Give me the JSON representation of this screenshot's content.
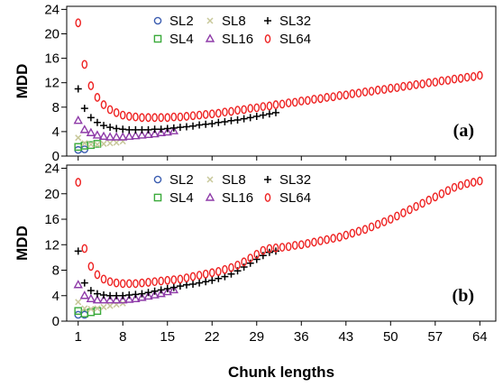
{
  "chart_data": {
    "type": "scatter",
    "xlabel": "Chunk lengths",
    "ylabel": "MDD",
    "x_ticks": [
      1,
      8,
      15,
      22,
      29,
      36,
      43,
      50,
      57,
      64
    ],
    "y_ticks": [
      0,
      4,
      8,
      12,
      16,
      20,
      24
    ],
    "xlim": [
      -0.8,
      66.5
    ],
    "ylim": [
      0,
      24.5
    ],
    "grid": false,
    "legend_position": "top-left",
    "series_style": {
      "SL2": {
        "marker": "circle-open",
        "color": "#3a5cb0"
      },
      "SL4": {
        "marker": "square-open",
        "color": "#3aaa3a"
      },
      "SL8": {
        "marker": "x",
        "color": "#c8c89a"
      },
      "SL16": {
        "marker": "triangle-open",
        "color": "#8e3aa8"
      },
      "SL32": {
        "marker": "plus",
        "color": "#000000"
      },
      "SL64": {
        "marker": "ellipse-open",
        "color": "#ee2222"
      }
    },
    "panels": [
      {
        "panel_label": "(a)",
        "series": [
          {
            "name": "SL2",
            "x": [
              1,
              2
            ],
            "y": [
              1.0,
              1.1
            ]
          },
          {
            "name": "SL4",
            "x": [
              1,
              2,
              3,
              4
            ],
            "y": [
              1.5,
              1.7,
              1.8,
              2.0
            ]
          },
          {
            "name": "SL8",
            "x": [
              1,
              2,
              3,
              4,
              5,
              6,
              7,
              8
            ],
            "y": [
              3.0,
              2.1,
              1.9,
              1.9,
              2.0,
              2.1,
              2.2,
              2.4
            ]
          },
          {
            "name": "SL16",
            "x": [
              1,
              2,
              3,
              4,
              5,
              6,
              7,
              8,
              9,
              10,
              11,
              12,
              13,
              14,
              15,
              16
            ],
            "y": [
              5.8,
              4.3,
              3.8,
              3.4,
              3.2,
              3.1,
              3.1,
              3.1,
              3.2,
              3.3,
              3.4,
              3.5,
              3.6,
              3.8,
              3.9,
              4.1
            ]
          },
          {
            "name": "SL32",
            "x": [
              1,
              2,
              3,
              4,
              5,
              6,
              7,
              8,
              9,
              10,
              11,
              12,
              13,
              14,
              15,
              16,
              17,
              18,
              19,
              20,
              21,
              22,
              23,
              24,
              25,
              26,
              27,
              28,
              29,
              30,
              31,
              32
            ],
            "y": [
              11.0,
              7.8,
              6.3,
              5.5,
              5.0,
              4.7,
              4.5,
              4.4,
              4.3,
              4.3,
              4.3,
              4.3,
              4.4,
              4.4,
              4.5,
              4.6,
              4.7,
              4.8,
              4.9,
              5.1,
              5.2,
              5.3,
              5.5,
              5.6,
              5.8,
              5.9,
              6.1,
              6.3,
              6.5,
              6.7,
              6.9,
              7.1
            ]
          },
          {
            "name": "SL64",
            "x": [
              1,
              2,
              3,
              4,
              5,
              6,
              7,
              8,
              9,
              10,
              11,
              12,
              13,
              14,
              15,
              16,
              17,
              18,
              19,
              20,
              21,
              22,
              23,
              24,
              25,
              26,
              27,
              28,
              29,
              30,
              31,
              32,
              33,
              34,
              35,
              36,
              37,
              38,
              39,
              40,
              41,
              42,
              43,
              44,
              45,
              46,
              47,
              48,
              49,
              50,
              51,
              52,
              53,
              54,
              55,
              56,
              57,
              58,
              59,
              60,
              61,
              62,
              63,
              64
            ],
            "y": [
              21.8,
              15.0,
              11.5,
              9.6,
              8.4,
              7.6,
              7.1,
              6.7,
              6.5,
              6.4,
              6.3,
              6.3,
              6.3,
              6.3,
              6.3,
              6.4,
              6.4,
              6.5,
              6.6,
              6.7,
              6.8,
              6.9,
              7.0,
              7.2,
              7.3,
              7.5,
              7.6,
              7.8,
              7.9,
              8.1,
              8.2,
              8.4,
              8.5,
              8.7,
              8.8,
              9.0,
              9.1,
              9.3,
              9.4,
              9.6,
              9.7,
              9.9,
              10.0,
              10.2,
              10.3,
              10.5,
              10.6,
              10.8,
              10.9,
              11.1,
              11.2,
              11.4,
              11.5,
              11.7,
              11.8,
              12.0,
              12.1,
              12.3,
              12.4,
              12.6,
              12.7,
              12.9,
              13.0,
              13.2
            ]
          }
        ]
      },
      {
        "panel_label": "(b)",
        "series": [
          {
            "name": "SL2",
            "x": [
              1,
              2
            ],
            "y": [
              1.0,
              1.0
            ]
          },
          {
            "name": "SL4",
            "x": [
              1,
              2,
              3,
              4
            ],
            "y": [
              1.6,
              1.2,
              1.4,
              1.6
            ]
          },
          {
            "name": "SL8",
            "x": [
              1,
              2,
              3,
              4,
              5,
              6,
              7,
              8
            ],
            "y": [
              3.0,
              2.0,
              1.9,
              2.0,
              2.2,
              2.4,
              2.6,
              2.8
            ]
          },
          {
            "name": "SL16",
            "x": [
              1,
              2,
              3,
              4,
              5,
              6,
              7,
              8,
              9,
              10,
              11,
              12,
              13,
              14,
              15,
              16
            ],
            "y": [
              5.7,
              4.0,
              3.5,
              3.3,
              3.3,
              3.3,
              3.3,
              3.3,
              3.4,
              3.5,
              3.7,
              3.9,
              4.1,
              4.3,
              4.6,
              4.9
            ]
          },
          {
            "name": "SL32",
            "x": [
              1,
              2,
              3,
              4,
              5,
              6,
              7,
              8,
              9,
              10,
              11,
              12,
              13,
              14,
              15,
              16,
              17,
              18,
              19,
              20,
              21,
              22,
              23,
              24,
              25,
              26,
              27,
              28,
              29,
              30,
              31,
              32
            ],
            "y": [
              11.0,
              6.0,
              4.8,
              4.3,
              4.1,
              4.0,
              4.0,
              4.0,
              4.1,
              4.2,
              4.3,
              4.5,
              4.7,
              4.9,
              5.1,
              5.3,
              5.5,
              5.7,
              5.8,
              6.0,
              6.2,
              6.4,
              6.7,
              7.0,
              7.4,
              7.9,
              8.5,
              9.1,
              9.7,
              10.3,
              10.8,
              11.0
            ]
          },
          {
            "name": "SL64",
            "x": [
              1,
              2,
              3,
              4,
              5,
              6,
              7,
              8,
              9,
              10,
              11,
              12,
              13,
              14,
              15,
              16,
              17,
              18,
              19,
              20,
              21,
              22,
              23,
              24,
              25,
              26,
              27,
              28,
              29,
              30,
              31,
              32,
              33,
              34,
              35,
              36,
              37,
              38,
              39,
              40,
              41,
              42,
              43,
              44,
              45,
              46,
              47,
              48,
              49,
              50,
              51,
              52,
              53,
              54,
              55,
              56,
              57,
              58,
              59,
              60,
              61,
              62,
              63,
              64
            ],
            "y": [
              21.8,
              11.4,
              8.6,
              7.3,
              6.6,
              6.2,
              6.0,
              5.9,
              5.9,
              5.9,
              6.0,
              6.1,
              6.2,
              6.3,
              6.4,
              6.5,
              6.6,
              6.8,
              7.0,
              7.2,
              7.4,
              7.6,
              7.8,
              8.1,
              8.4,
              8.8,
              9.3,
              9.9,
              10.5,
              11.1,
              11.4,
              11.5,
              11.6,
              11.7,
              11.9,
              12.0,
              12.2,
              12.4,
              12.6,
              12.8,
              13.0,
              13.2,
              13.5,
              13.8,
              14.1,
              14.4,
              14.8,
              15.2,
              15.6,
              16.0,
              16.5,
              17.0,
              17.5,
              18.0,
              18.5,
              19.0,
              19.5,
              20.0,
              20.5,
              21.0,
              21.3,
              21.6,
              21.8,
              22.0
            ]
          }
        ]
      }
    ]
  }
}
